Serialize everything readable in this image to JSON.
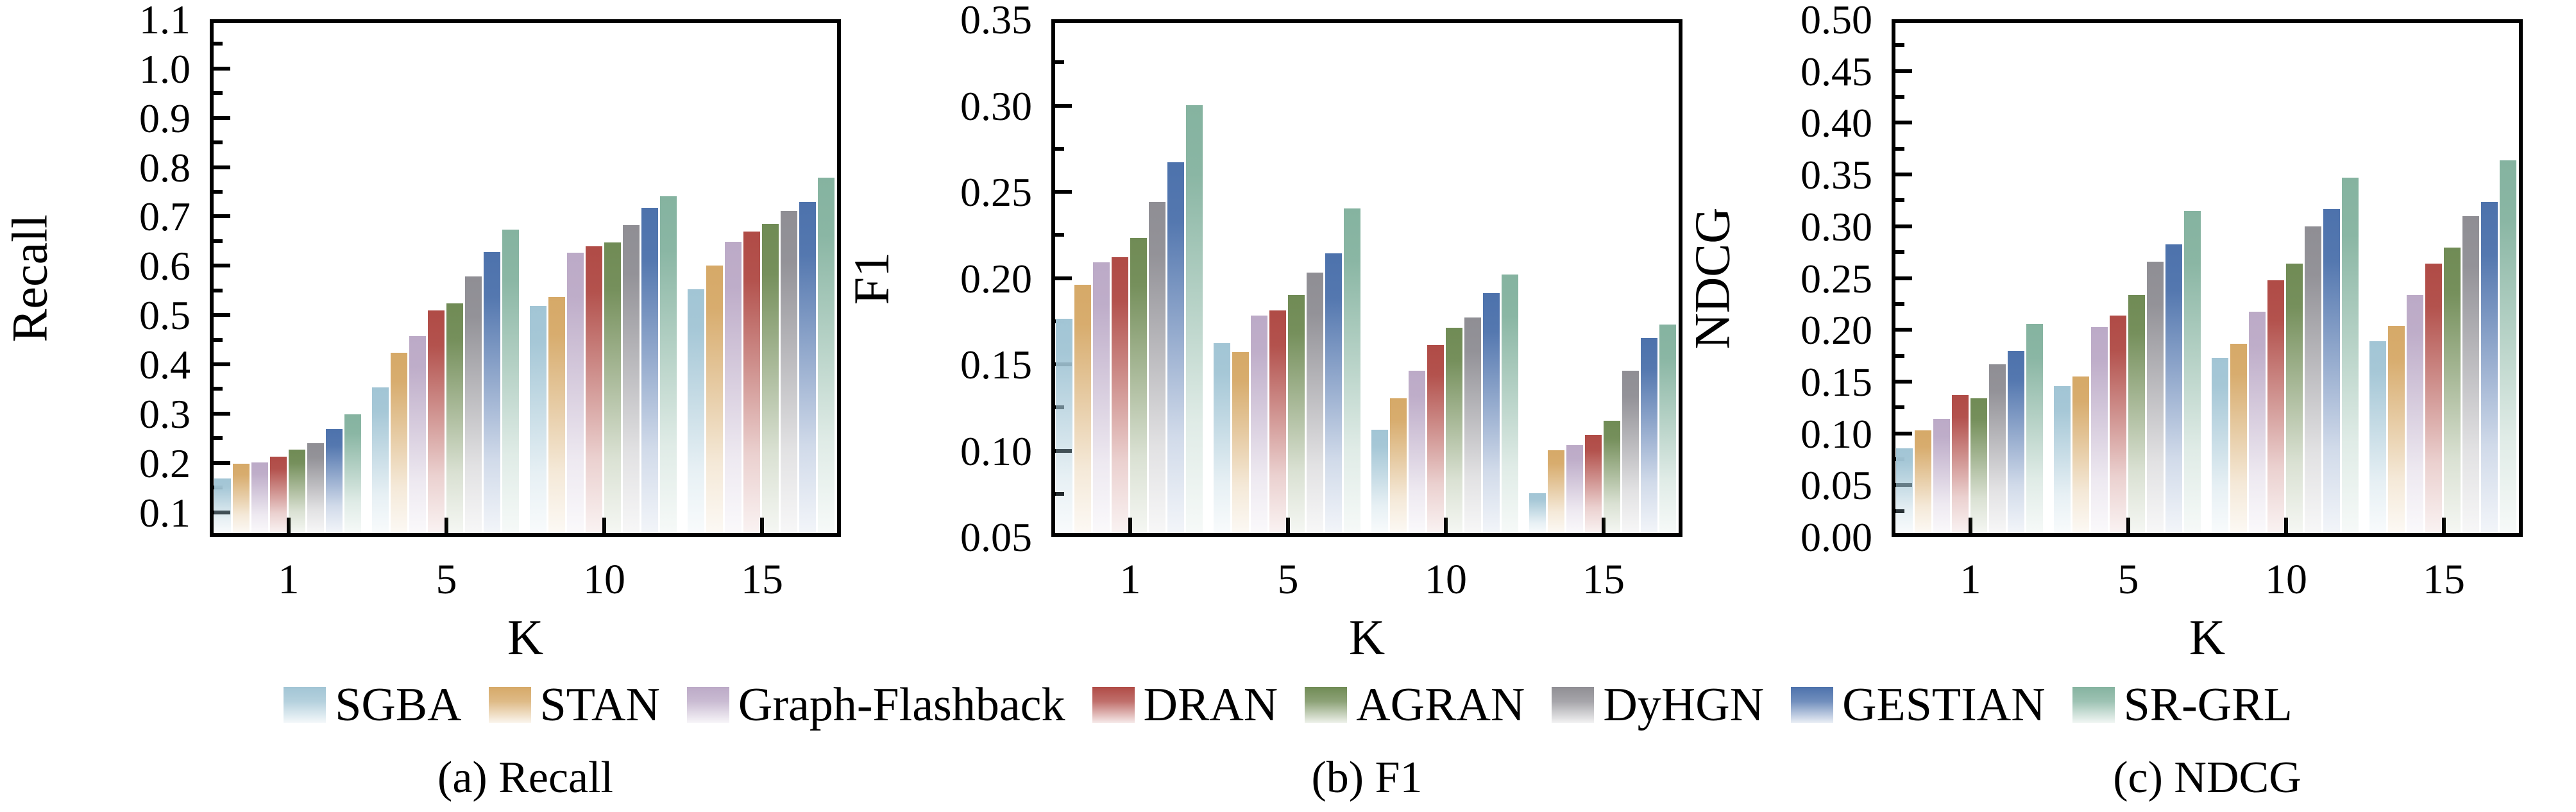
{
  "figure": {
    "background": "#ffffff",
    "x_axis_label": "K",
    "x_tick_labels": [
      "1",
      "5",
      "10",
      "15"
    ],
    "legend": [
      {
        "name": "SGBA",
        "color": "#a2c5d5"
      },
      {
        "name": "STAN",
        "color": "#d6a968"
      },
      {
        "name": "Graph-Flashback",
        "color": "#bcaac7"
      },
      {
        "name": "DRAN",
        "color": "#b04b46"
      },
      {
        "name": "AGRAN",
        "color": "#708b55"
      },
      {
        "name": "DyHGN",
        "color": "#8f8e94"
      },
      {
        "name": "GESTIAN",
        "color": "#4d72ac"
      },
      {
        "name": "SR-GRL",
        "color": "#85b3a0"
      }
    ],
    "captions": [
      "(a) Recall",
      "(b) F1",
      "(c) NDCG"
    ]
  },
  "chart_data": [
    {
      "type": "bar",
      "title": "(a) Recall",
      "ylabel": "Recall",
      "xlabel": "K",
      "categories": [
        1,
        5,
        10,
        15
      ],
      "ylim": [
        0.05,
        1.1
      ],
      "ytick_labels": [
        "1.1",
        "1.0",
        "0.9",
        "0.8",
        "0.7",
        "0.6",
        "0.5",
        "0.4",
        "0.3",
        "0.2",
        "0.1"
      ],
      "grid": false,
      "series": [
        {
          "name": "SGBA",
          "values": [
            0.16,
            0.345,
            0.51,
            0.545
          ]
        },
        {
          "name": "STAN",
          "values": [
            0.19,
            0.415,
            0.529,
            0.593
          ]
        },
        {
          "name": "Graph-Flashback",
          "values": [
            0.193,
            0.45,
            0.619,
            0.641
          ]
        },
        {
          "name": "DRAN",
          "values": [
            0.205,
            0.502,
            0.632,
            0.661
          ]
        },
        {
          "name": "AGRAN",
          "values": [
            0.219,
            0.516,
            0.639,
            0.677
          ]
        },
        {
          "name": "DyHGN",
          "values": [
            0.232,
            0.571,
            0.674,
            0.703
          ]
        },
        {
          "name": "GESTIAN",
          "values": [
            0.261,
            0.62,
            0.71,
            0.721
          ]
        },
        {
          "name": "SR-GRL",
          "values": [
            0.291,
            0.666,
            0.733,
            0.771
          ]
        }
      ]
    },
    {
      "type": "bar",
      "title": "(b) F1",
      "ylabel": "F1",
      "xlabel": "K",
      "categories": [
        1,
        5,
        10,
        15
      ],
      "ylim": [
        0.05,
        0.35
      ],
      "ytick_labels": [
        "0.35",
        "0.30",
        "0.25",
        "0.20",
        "0.15",
        "0.10",
        "0.05"
      ],
      "grid": false,
      "series": [
        {
          "name": "SGBA",
          "values": [
            0.174,
            0.16,
            0.11,
            0.073
          ]
        },
        {
          "name": "STAN",
          "values": [
            0.194,
            0.155,
            0.128,
            0.098
          ]
        },
        {
          "name": "Graph-Flashback",
          "values": [
            0.207,
            0.176,
            0.144,
            0.101
          ]
        },
        {
          "name": "DRAN",
          "values": [
            0.21,
            0.179,
            0.159,
            0.107
          ]
        },
        {
          "name": "AGRAN",
          "values": [
            0.221,
            0.188,
            0.169,
            0.115
          ]
        },
        {
          "name": "DyHGN",
          "values": [
            0.242,
            0.201,
            0.175,
            0.144
          ]
        },
        {
          "name": "GESTIAN",
          "values": [
            0.265,
            0.212,
            0.189,
            0.163
          ]
        },
        {
          "name": "SR-GRL",
          "values": [
            0.298,
            0.238,
            0.2,
            0.171
          ]
        }
      ]
    },
    {
      "type": "bar",
      "title": "(c) NDCG",
      "ylabel": "NDCG",
      "xlabel": "K",
      "categories": [
        1,
        5,
        10,
        15
      ],
      "ylim": [
        0.0,
        0.5
      ],
      "ytick_labels": [
        "0.50",
        "0.45",
        "0.40",
        "0.35",
        "0.30",
        "0.25",
        "0.20",
        "0.15",
        "0.10",
        "0.05",
        "0.00"
      ],
      "grid": false,
      "series": [
        {
          "name": "SGBA",
          "values": [
            0.082,
            0.142,
            0.169,
            0.185
          ]
        },
        {
          "name": "STAN",
          "values": [
            0.099,
            0.151,
            0.183,
            0.2
          ]
        },
        {
          "name": "Graph-Flashback",
          "values": [
            0.11,
            0.199,
            0.214,
            0.23
          ]
        },
        {
          "name": "DRAN",
          "values": [
            0.133,
            0.21,
            0.244,
            0.26
          ]
        },
        {
          "name": "AGRAN",
          "values": [
            0.13,
            0.23,
            0.26,
            0.276
          ]
        },
        {
          "name": "DyHGN",
          "values": [
            0.163,
            0.262,
            0.296,
            0.306
          ]
        },
        {
          "name": "GESTIAN",
          "values": [
            0.176,
            0.279,
            0.313,
            0.32
          ]
        },
        {
          "name": "SR-GRL",
          "values": [
            0.202,
            0.311,
            0.343,
            0.36
          ]
        }
      ]
    }
  ]
}
